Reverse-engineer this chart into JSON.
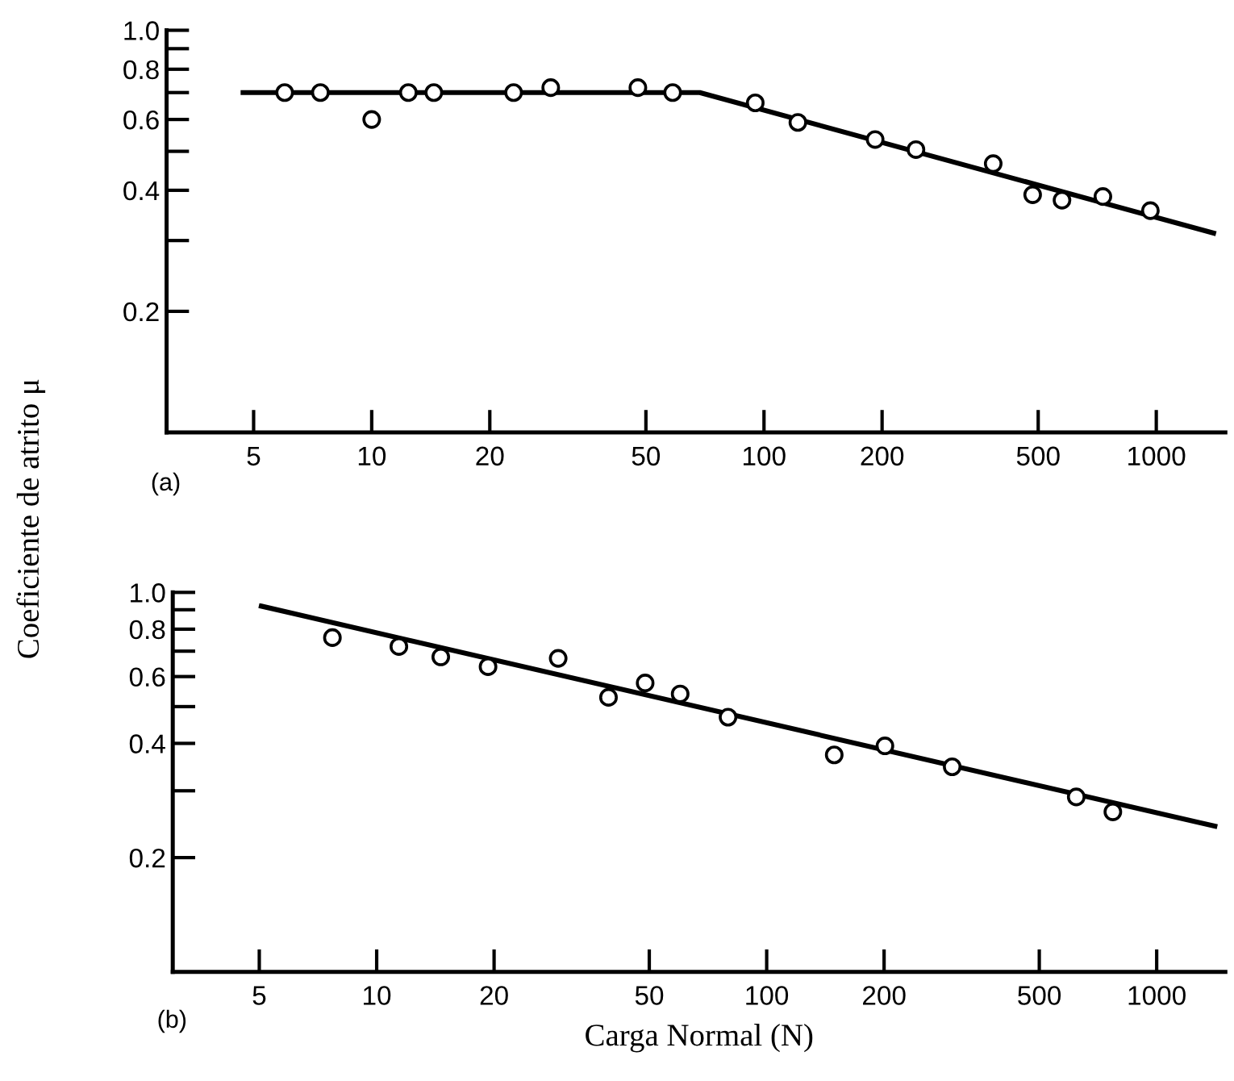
{
  "chart_data": [
    {
      "type": "scatter",
      "ylabel": "Coeficiente de atrito μ",
      "annotations": [
        "(a)"
      ],
      "log": "xy",
      "grid": false,
      "legend": false,
      "xlim": [
        3,
        1500
      ],
      "ylim": [
        0.1,
        1.0
      ],
      "xticks": [
        5,
        10,
        20,
        50,
        100,
        200,
        500,
        1000
      ],
      "yticks": [
        {
          "value": 0.2,
          "label": "0.2"
        },
        {
          "value": 0.3,
          "label": null
        },
        {
          "value": 0.4,
          "label": "0.4"
        },
        {
          "value": 0.5,
          "label": null
        },
        {
          "value": 0.6,
          "label": "0.6"
        },
        {
          "value": 0.7,
          "label": null
        },
        {
          "value": 0.8,
          "label": "0.8"
        },
        {
          "value": 0.9,
          "label": null
        },
        {
          "value": 1.0,
          "label": "1.0"
        }
      ],
      "series": [
        {
          "marker": "circle",
          "color": "#000000",
          "x": [
            6,
            7.4,
            10,
            12.4,
            14.4,
            23,
            28.6,
            47.7,
            58.5,
            95,
            122,
            192,
            244,
            384,
            484,
            575,
            731,
            966
          ],
          "values": [
            0.7,
            0.7,
            0.6,
            0.7,
            0.7,
            0.7,
            0.72,
            0.72,
            0.7,
            0.66,
            0.59,
            0.535,
            0.505,
            0.466,
            0.39,
            0.378,
            0.386,
            0.356
          ]
        },
        {
          "type": "line",
          "color": "#000000",
          "line_style": "solid",
          "x": [
            4.7,
            68.6,
            1400
          ],
          "values": [
            0.7,
            0.7,
            0.313
          ]
        }
      ]
    },
    {
      "type": "scatter",
      "xlabel": "Carga Normal (N)",
      "annotations": [
        "(b)"
      ],
      "log": "xy",
      "grid": false,
      "legend": false,
      "xlim": [
        3,
        1500
      ],
      "ylim": [
        0.1,
        1.0
      ],
      "xticks": [
        5,
        10,
        20,
        50,
        100,
        200,
        500,
        1000
      ],
      "yticks": [
        {
          "value": 0.2,
          "label": "0.2"
        },
        {
          "value": 0.3,
          "label": null
        },
        {
          "value": 0.4,
          "label": "0.4"
        },
        {
          "value": 0.5,
          "label": null
        },
        {
          "value": 0.6,
          "label": "0.6"
        },
        {
          "value": 0.7,
          "label": null
        },
        {
          "value": 0.8,
          "label": "0.8"
        },
        {
          "value": 0.9,
          "label": null
        },
        {
          "value": 1.0,
          "label": "1.0"
        }
      ],
      "series": [
        {
          "marker": "circle",
          "color": "#000000",
          "x": [
            7.7,
            11.4,
            14.6,
            19.3,
            29.2,
            39.3,
            48.8,
            60,
            79.6,
            149,
            201,
            299,
            622,
            772
          ],
          "values": [
            0.76,
            0.72,
            0.676,
            0.637,
            0.67,
            0.529,
            0.577,
            0.54,
            0.469,
            0.373,
            0.394,
            0.347,
            0.289,
            0.264
          ]
        },
        {
          "type": "line",
          "color": "#000000",
          "line_style": "solid",
          "x": [
            5.06,
            1410
          ],
          "values": [
            0.92,
            0.242
          ]
        }
      ]
    }
  ]
}
